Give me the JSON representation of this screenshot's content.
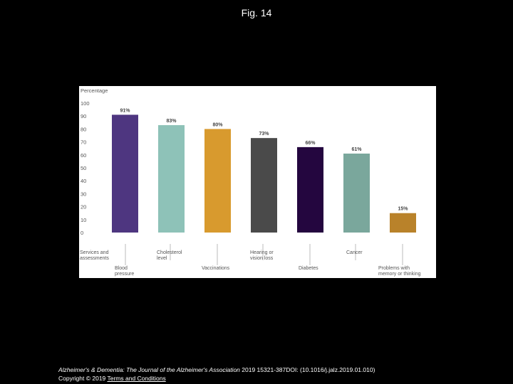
{
  "figure": {
    "title": "Fig. 14"
  },
  "chart_data": {
    "type": "bar",
    "ylabel": "Percentage",
    "ylim": [
      0,
      100
    ],
    "yticks": [
      "100",
      "90",
      "80",
      "70",
      "60",
      "50",
      "40",
      "30",
      "20",
      "10",
      "0"
    ],
    "categories": [
      "Blood pressure",
      "Cholesterol level",
      "Vaccinations",
      "Hearing or vision loss",
      "Diabetes",
      "Cancer",
      "Problems with memory or thinking"
    ],
    "top_axis_labels": [
      "Services and assessments",
      "Cholesterol level",
      "Hearing or vision loss",
      "Cancer"
    ],
    "bottom_axis_labels": [
      "Blood pressure",
      "Vaccinations",
      "Diabetes",
      "Problems with memory or thinking"
    ],
    "values": [
      91,
      83,
      80,
      73,
      66,
      61,
      15
    ],
    "value_labels": [
      "91%",
      "83%",
      "80%",
      "73%",
      "66%",
      "61%",
      "15%"
    ],
    "colors": [
      "#4e3680",
      "#8ec2b8",
      "#d89a2e",
      "#4a4a4a",
      "#24063f",
      "#7aa79c",
      "#b9822a"
    ],
    "grid": false
  },
  "footer": {
    "journal": "Alzheimer's & Dementia: The Journal of the Alzheimer's Association",
    "citation": " 2019 15321-387DOI: (10.1016/j.jalz.2019.01.010)",
    "copyright": "Copyright © 2019 ",
    "terms": "Terms and Conditions"
  }
}
